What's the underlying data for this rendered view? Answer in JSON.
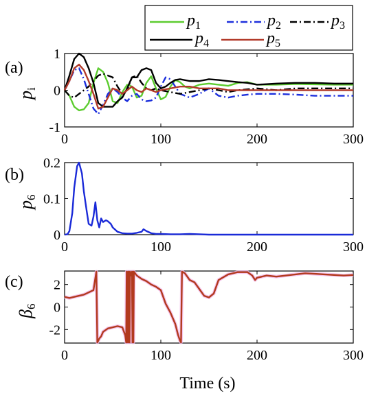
{
  "figure": {
    "xlabel": "Time  (s)",
    "colors": {
      "p1": "#5ccc2f",
      "p2": "#1c2fdc",
      "p3": "#000000",
      "p4": "#000000",
      "p5": "#b23a2a",
      "p6": "#1a2ad8",
      "beta6": "#b23a1e",
      "beta6_glow": "#f3b6e8"
    }
  },
  "chart_data": [
    {
      "panel": "(a)",
      "type": "line",
      "ylabel": "p",
      "ylabel_sub": "i",
      "xlim": [
        0,
        300
      ],
      "ylim": [
        -1,
        1
      ],
      "xticks": [
        "0",
        "100",
        "200",
        "300"
      ],
      "yticks": [
        "1",
        "0",
        "-1"
      ],
      "legend_position": "top-right",
      "series": [
        {
          "name": "p",
          "sub": "1",
          "style": "solid",
          "color_key": "p1",
          "x": [
            0,
            5,
            10,
            15,
            20,
            25,
            30,
            35,
            40,
            45,
            50,
            55,
            60,
            65,
            70,
            75,
            80,
            85,
            90,
            95,
            100,
            105,
            110,
            115,
            120,
            125,
            130,
            135,
            140,
            150,
            160,
            170,
            180,
            190,
            200,
            220,
            240,
            260,
            280,
            300
          ],
          "y": [
            0,
            -0.15,
            -0.45,
            -0.55,
            -0.52,
            -0.35,
            0.2,
            0.6,
            0.5,
            0.2,
            -0.3,
            -0.35,
            -0.05,
            0.15,
            0.1,
            -0.2,
            -0.15,
            0.2,
            0.38,
            0.05,
            -0.25,
            -0.18,
            0.1,
            0.28,
            0.22,
            0.1,
            0.05,
            0.1,
            0.15,
            0.18,
            0.15,
            0.12,
            0.2,
            0.22,
            0.15,
            0.15,
            0.17,
            0.16,
            0.15,
            0.15
          ]
        },
        {
          "name": "p",
          "sub": "2",
          "style": "dashdot",
          "color_key": "p2",
          "x": [
            0,
            5,
            10,
            15,
            20,
            25,
            30,
            35,
            40,
            45,
            50,
            55,
            60,
            65,
            70,
            75,
            80,
            85,
            90,
            95,
            100,
            105,
            110,
            115,
            120,
            130,
            140,
            150,
            160,
            170,
            180,
            190,
            200,
            220,
            240,
            260,
            280,
            300
          ],
          "y": [
            0,
            0.25,
            0.55,
            0.6,
            0.3,
            -0.1,
            -0.5,
            -0.65,
            -0.4,
            -0.1,
            0.05,
            -0.05,
            -0.2,
            -0.3,
            -0.15,
            -0.1,
            -0.25,
            -0.3,
            -0.28,
            -0.2,
            0.1,
            0.35,
            0.3,
            0.1,
            -0.1,
            -0.2,
            -0.1,
            0.05,
            -0.15,
            -0.2,
            -0.15,
            -0.12,
            -0.1,
            -0.1,
            -0.12,
            -0.15,
            -0.15,
            -0.15
          ]
        },
        {
          "name": "p",
          "sub": "3",
          "style": "dashdot",
          "color_key": "p3",
          "x": [
            0,
            5,
            10,
            15,
            20,
            25,
            30,
            35,
            40,
            45,
            50,
            55,
            60,
            65,
            70,
            75,
            80,
            85,
            90,
            95,
            100,
            110,
            120,
            130,
            140,
            150,
            160,
            170,
            180,
            200,
            220,
            240,
            260,
            280,
            300
          ],
          "y": [
            0,
            -0.15,
            -0.2,
            -0.1,
            0.0,
            0.1,
            0.25,
            0.4,
            0.45,
            0.4,
            0.35,
            0.1,
            -0.1,
            0.0,
            0.35,
            0.4,
            0.2,
            0.05,
            0.0,
            0.05,
            0.0,
            -0.05,
            -0.1,
            -0.05,
            0.0,
            0.05,
            0.0,
            -0.05,
            0.0,
            0.05,
            0.0,
            0.05,
            0.05,
            0.05,
            0.05
          ]
        },
        {
          "name": "p",
          "sub": "4",
          "style": "solid",
          "color_key": "p4",
          "x": [
            0,
            5,
            10,
            15,
            20,
            25,
            30,
            35,
            40,
            45,
            50,
            55,
            60,
            65,
            70,
            75,
            80,
            85,
            90,
            95,
            100,
            105,
            110,
            115,
            120,
            130,
            140,
            150,
            160,
            170,
            180,
            190,
            200,
            220,
            240,
            260,
            280,
            300
          ],
          "y": [
            0,
            0.4,
            0.85,
            1.0,
            0.9,
            0.6,
            0.2,
            -0.35,
            -0.45,
            -0.45,
            -0.45,
            -0.3,
            -0.2,
            0.05,
            0.35,
            0.35,
            0.55,
            0.6,
            0.55,
            0.2,
            0.05,
            0.1,
            0.2,
            0.28,
            0.3,
            0.25,
            0.25,
            0.3,
            0.28,
            0.25,
            0.22,
            0.2,
            0.15,
            0.18,
            0.2,
            0.2,
            0.18,
            0.18
          ]
        },
        {
          "name": "p",
          "sub": "5",
          "style": "solid",
          "color_key": "p5",
          "x": [
            0,
            5,
            10,
            15,
            20,
            25,
            30,
            35,
            40,
            45,
            50,
            55,
            60,
            65,
            70,
            75,
            80,
            85,
            90,
            95,
            100,
            110,
            120,
            130,
            140,
            150,
            160,
            170,
            180,
            190,
            200,
            220,
            240,
            260,
            280,
            300
          ],
          "y": [
            0,
            0.25,
            0.6,
            0.7,
            0.55,
            0.25,
            -0.1,
            -0.5,
            -0.45,
            -0.2,
            0.05,
            0.0,
            -0.1,
            0.0,
            0.1,
            0.0,
            -0.05,
            0.05,
            0.0,
            -0.05,
            0.0,
            0.05,
            0.1,
            0.1,
            0.05,
            0.05,
            0.05,
            0.0,
            0.0,
            0.0,
            0.0,
            0.0,
            0.0,
            0.0,
            0.0,
            0.0
          ]
        }
      ]
    },
    {
      "panel": "(b)",
      "type": "line",
      "ylabel": "p",
      "ylabel_sub": "6",
      "xlim": [
        0,
        300
      ],
      "ylim": [
        0,
        0.2
      ],
      "xticks": [
        "0",
        "100",
        "200",
        "300"
      ],
      "yticks": [
        "0.2",
        "0.1",
        "0"
      ],
      "series": [
        {
          "name": "",
          "color_key": "p6",
          "x": [
            0,
            3,
            5,
            8,
            10,
            13,
            15,
            18,
            20,
            23,
            25,
            28,
            30,
            32,
            34,
            36,
            38,
            40,
            43,
            45,
            48,
            50,
            55,
            60,
            65,
            70,
            75,
            80,
            82,
            85,
            90,
            95,
            100,
            110,
            120,
            130,
            140,
            150,
            200,
            250,
            300
          ],
          "y": [
            0,
            0.001,
            0.01,
            0.06,
            0.13,
            0.19,
            0.2,
            0.17,
            0.12,
            0.065,
            0.03,
            0.025,
            0.05,
            0.09,
            0.04,
            0.02,
            0.045,
            0.035,
            0.04,
            0.037,
            0.03,
            0.02,
            0.008,
            0.004,
            0.003,
            0.003,
            0.005,
            0.008,
            0.015,
            0.01,
            0.004,
            0.002,
            0.002,
            0.001,
            0.001,
            0.002,
            0.001,
            0.0,
            0.0,
            0.0,
            0.0
          ]
        }
      ]
    },
    {
      "panel": "(c)",
      "type": "line",
      "ylabel": "β",
      "ylabel_sub": "6",
      "xlim": [
        0,
        300
      ],
      "ylim": [
        -3.2,
        3.2
      ],
      "xticks": [
        "0",
        "100",
        "200",
        "300"
      ],
      "yticks": [
        "2",
        "0",
        "-2"
      ],
      "series": [
        {
          "name": "",
          "color_key": "beta6",
          "x": [
            0,
            5,
            10,
            15,
            20,
            25,
            30,
            33,
            34,
            35,
            36,
            38,
            40,
            45,
            50,
            55,
            60,
            63,
            64,
            64.5,
            65,
            66,
            66.5,
            67,
            67.5,
            68,
            69,
            70,
            70.5,
            71,
            71.5,
            72,
            75,
            80,
            85,
            90,
            95,
            100,
            105,
            110,
            115,
            118,
            120,
            121,
            122,
            125,
            130,
            135,
            140,
            145,
            150,
            155,
            160,
            170,
            180,
            190,
            195,
            198,
            200,
            210,
            220,
            240,
            250,
            260,
            270,
            280,
            290,
            300
          ],
          "y": [
            0.9,
            0.8,
            0.9,
            1.0,
            1.1,
            1.3,
            1.5,
            3.14,
            -3.14,
            -3.0,
            -2.8,
            -2.6,
            -2.2,
            -1.9,
            -1.8,
            -1.7,
            -1.8,
            -2.5,
            -3.14,
            3.14,
            -3.14,
            3.14,
            -3.14,
            3.14,
            -3.14,
            3.14,
            2.8,
            3.14,
            -3.14,
            3.14,
            -3.14,
            3.14,
            2.8,
            2.5,
            2.3,
            2.0,
            1.8,
            1.5,
            0.3,
            -0.5,
            -1.5,
            -2.5,
            -3.0,
            -3.14,
            3.14,
            3.0,
            2.4,
            2.2,
            1.6,
            1.0,
            0.85,
            1.2,
            2.4,
            2.9,
            3.1,
            3.1,
            2.8,
            2.4,
            2.6,
            2.8,
            2.7,
            2.9,
            3.0,
            2.95,
            2.9,
            2.85,
            2.8,
            2.85
          ]
        }
      ]
    }
  ]
}
